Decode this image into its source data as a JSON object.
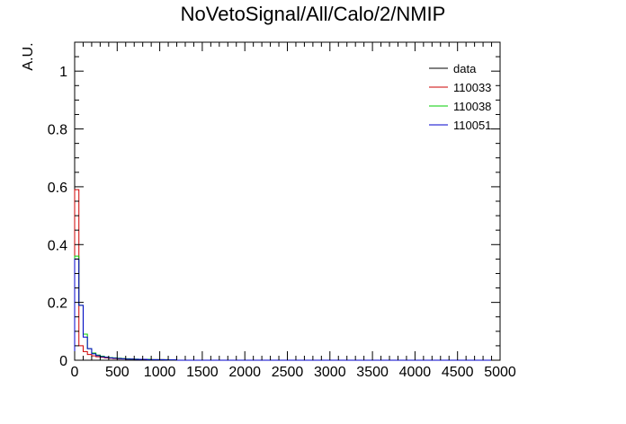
{
  "chart_data": {
    "type": "line",
    "title": "NoVetoSignal/All/Calo/2/NMIP",
    "ylabel": "A.U.",
    "xlabel": "",
    "xlim": [
      0,
      5000
    ],
    "ylim": [
      0,
      1.1
    ],
    "x_ticks": [
      "0",
      "500",
      "1000",
      "1500",
      "2000",
      "2500",
      "3000",
      "3500",
      "4000",
      "4500",
      "5000"
    ],
    "y_ticks": [
      "0",
      "0.2",
      "0.4",
      "0.6",
      "0.8",
      "1"
    ],
    "grid": false,
    "legend_position": "top-right",
    "bin_edges": [
      0,
      50,
      100,
      150,
      200,
      250,
      300,
      350,
      400,
      450,
      500,
      550,
      600,
      650,
      700,
      750,
      800,
      850,
      900,
      950,
      1000,
      1050,
      1100,
      1150,
      1200
    ],
    "series": [
      {
        "name": "data",
        "color": "#000000",
        "values": [
          0.0,
          0.0,
          0.0,
          0.0,
          0.0,
          0.0,
          0.0,
          0.0,
          0.0,
          0.0,
          0.0,
          0.0,
          0.0,
          0.0,
          0.0,
          0.0,
          0.0,
          0.0,
          0.0,
          0.0,
          0.0,
          0.0,
          0.0,
          0.0
        ]
      },
      {
        "name": "110033",
        "color": "#cc0000",
        "values": [
          0.59,
          0.05,
          0.03,
          0.02,
          0.015,
          0.012,
          0.01,
          0.008,
          0.007,
          0.006,
          0.005,
          0.005,
          0.004,
          0.004,
          0.003,
          0.003,
          0.003,
          0.003,
          0.002,
          0.002,
          0.002,
          0.002,
          0.001,
          0.001
        ]
      },
      {
        "name": "110038",
        "color": "#00cc00",
        "values": [
          0.36,
          0.19,
          0.09,
          0.04,
          0.025,
          0.018,
          0.014,
          0.011,
          0.009,
          0.008,
          0.007,
          0.006,
          0.005,
          0.004,
          0.004,
          0.003,
          0.003,
          0.003,
          0.002,
          0.002,
          0.002,
          0.002,
          0.001,
          0.001
        ]
      },
      {
        "name": "110051",
        "color": "#0000cc",
        "values": [
          0.35,
          0.19,
          0.08,
          0.04,
          0.022,
          0.016,
          0.012,
          0.01,
          0.008,
          0.007,
          0.006,
          0.005,
          0.004,
          0.004,
          0.003,
          0.003,
          0.003,
          0.002,
          0.002,
          0.002,
          0.002,
          0.001,
          0.001,
          0.001
        ]
      }
    ]
  }
}
